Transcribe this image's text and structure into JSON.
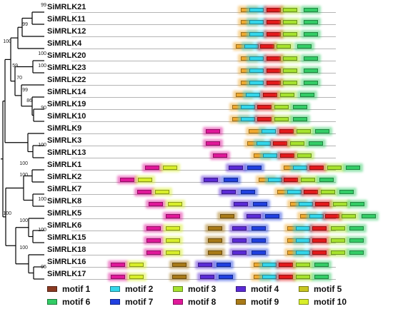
{
  "genes": [
    {
      "name": "SiMRLK21",
      "motifs": [
        [
          5,
          337
        ],
        [
          2,
          349
        ],
        [
          1,
          373
        ],
        [
          3,
          396
        ],
        [
          6,
          425
        ]
      ]
    },
    {
      "name": "SiMRLK11",
      "motifs": [
        [
          5,
          337
        ],
        [
          2,
          349
        ],
        [
          1,
          373
        ],
        [
          3,
          396
        ],
        [
          6,
          425
        ]
      ]
    },
    {
      "name": "SiMRLK12",
      "motifs": [
        [
          5,
          337
        ],
        [
          2,
          349
        ],
        [
          1,
          373
        ],
        [
          3,
          396
        ],
        [
          6,
          425
        ]
      ]
    },
    {
      "name": "SiMRLK4",
      "motifs": [
        [
          5,
          330
        ],
        [
          2,
          342
        ],
        [
          1,
          364
        ],
        [
          3,
          387
        ],
        [
          6,
          416
        ]
      ]
    },
    {
      "name": "SiMRLK20",
      "motifs": [
        [
          5,
          337
        ],
        [
          2,
          349
        ],
        [
          1,
          373
        ],
        [
          3,
          396
        ],
        [
          6,
          425
        ]
      ]
    },
    {
      "name": "SiMRLK23",
      "motifs": [
        [
          5,
          337
        ],
        [
          2,
          349
        ],
        [
          1,
          373
        ],
        [
          3,
          396
        ],
        [
          6,
          425
        ]
      ]
    },
    {
      "name": "SiMRLK22",
      "motifs": [
        [
          5,
          337
        ],
        [
          2,
          349
        ],
        [
          1,
          373
        ],
        [
          3,
          396
        ],
        [
          6,
          425
        ]
      ]
    },
    {
      "name": "SiMRLK14",
      "motifs": [
        [
          5,
          330
        ],
        [
          2,
          344
        ],
        [
          1,
          368
        ],
        [
          3,
          392
        ],
        [
          6,
          420
        ]
      ]
    },
    {
      "name": "SiMRLK19",
      "motifs": [
        [
          5,
          325
        ],
        [
          2,
          337
        ],
        [
          1,
          360
        ],
        [
          3,
          384
        ],
        [
          6,
          410
        ]
      ]
    },
    {
      "name": "SiMRLK10",
      "motifs": [
        [
          5,
          325
        ],
        [
          2,
          337
        ],
        [
          1,
          360
        ],
        [
          3,
          384
        ],
        [
          6,
          410
        ]
      ]
    },
    {
      "name": "SiMRLK9",
      "motifs": [
        [
          8,
          288
        ],
        [
          5,
          348
        ],
        [
          2,
          366
        ],
        [
          1,
          391
        ],
        [
          3,
          415
        ],
        [
          6,
          441
        ]
      ]
    },
    {
      "name": "SiMRLK3",
      "motifs": [
        [
          8,
          288
        ],
        [
          5,
          346
        ],
        [
          2,
          359
        ],
        [
          1,
          382
        ],
        [
          3,
          406
        ],
        [
          6,
          432
        ]
      ]
    },
    {
      "name": "SiMRLK13",
      "motifs": [
        [
          8,
          298
        ],
        [
          5,
          355
        ],
        [
          2,
          368
        ],
        [
          1,
          392
        ],
        [
          3,
          416
        ]
      ]
    },
    {
      "name": "SiMRLK1",
      "motifs": [
        [
          8,
          203
        ],
        [
          10,
          228
        ],
        [
          4,
          320
        ],
        [
          7,
          346
        ],
        [
          5,
          397
        ],
        [
          2,
          410
        ],
        [
          1,
          433
        ],
        [
          3,
          458
        ],
        [
          6,
          484
        ]
      ]
    },
    {
      "name": "SiMRLK2",
      "motifs": [
        [
          8,
          168
        ],
        [
          10,
          193
        ],
        [
          4,
          285
        ],
        [
          7,
          313
        ],
        [
          5,
          362
        ],
        [
          2,
          375
        ],
        [
          1,
          397
        ],
        [
          3,
          421
        ],
        [
          6,
          447
        ]
      ]
    },
    {
      "name": "SiMRLK7",
      "motifs": [
        [
          8,
          192
        ],
        [
          10,
          217
        ],
        [
          4,
          310
        ],
        [
          7,
          337
        ],
        [
          5,
          388
        ],
        [
          2,
          402
        ],
        [
          1,
          425
        ],
        [
          3,
          449
        ],
        [
          6,
          475
        ]
      ]
    },
    {
      "name": "SiMRLK8",
      "motifs": [
        [
          8,
          208
        ],
        [
          10,
          235
        ],
        [
          4,
          327
        ],
        [
          7,
          354
        ],
        [
          5,
          406
        ],
        [
          2,
          418
        ],
        [
          1,
          441
        ],
        [
          3,
          466
        ],
        [
          6,
          490
        ]
      ]
    },
    {
      "name": "SiMRLK5",
      "motifs": [
        [
          8,
          232
        ],
        [
          9,
          308
        ],
        [
          4,
          345
        ],
        [
          7,
          371
        ],
        [
          5,
          420
        ],
        [
          2,
          433
        ],
        [
          1,
          455
        ],
        [
          3,
          478
        ],
        [
          6,
          506
        ]
      ]
    },
    {
      "name": "SiMRLK6",
      "motifs": [
        [
          8,
          205
        ],
        [
          10,
          232
        ],
        [
          9,
          291
        ],
        [
          4,
          325
        ],
        [
          7,
          352
        ],
        [
          5,
          402
        ],
        [
          2,
          414
        ],
        [
          1,
          437
        ],
        [
          3,
          463
        ],
        [
          6,
          489
        ]
      ]
    },
    {
      "name": "SiMRLK15",
      "motifs": [
        [
          8,
          205
        ],
        [
          10,
          232
        ],
        [
          9,
          291
        ],
        [
          4,
          325
        ],
        [
          7,
          352
        ],
        [
          5,
          402
        ],
        [
          2,
          414
        ],
        [
          1,
          437
        ],
        [
          3,
          463
        ],
        [
          6,
          489
        ]
      ]
    },
    {
      "name": "SiMRLK18",
      "motifs": [
        [
          8,
          205
        ],
        [
          10,
          232
        ],
        [
          9,
          291
        ],
        [
          4,
          325
        ],
        [
          7,
          352
        ],
        [
          5,
          402
        ],
        [
          2,
          414
        ],
        [
          1,
          437
        ],
        [
          3,
          463
        ],
        [
          6,
          489
        ]
      ]
    },
    {
      "name": "SiMRLK16",
      "motifs": [
        [
          8,
          155
        ],
        [
          10,
          181
        ],
        [
          9,
          241
        ],
        [
          4,
          277
        ],
        [
          7,
          303
        ],
        [
          5,
          355
        ],
        [
          2,
          367
        ],
        [
          1,
          390
        ],
        [
          3,
          414
        ],
        [
          6,
          440
        ]
      ]
    },
    {
      "name": "SiMRLK17",
      "motifs": [
        [
          8,
          155
        ],
        [
          10,
          181
        ],
        [
          9,
          241
        ],
        [
          4,
          280
        ],
        [
          7,
          306
        ],
        [
          5,
          355
        ],
        [
          2,
          367
        ],
        [
          1,
          390
        ],
        [
          3,
          414
        ],
        [
          6,
          440
        ]
      ]
    }
  ],
  "support_values": [
    {
      "value": "99",
      "x": 66,
      "y": 13
    },
    {
      "value": "99",
      "x": 40,
      "y": 40
    },
    {
      "value": "100",
      "x": 17,
      "y": 64
    },
    {
      "value": "100",
      "x": 66,
      "y": 81
    },
    {
      "value": "59",
      "x": 26,
      "y": 98
    },
    {
      "value": "100",
      "x": 66,
      "y": 98
    },
    {
      "value": "70",
      "x": 32,
      "y": 115
    },
    {
      "value": "99",
      "x": 40,
      "y": 132
    },
    {
      "value": "86",
      "x": 46,
      "y": 147
    },
    {
      "value": "90",
      "x": 66,
      "y": 157
    },
    {
      "value": "100",
      "x": 66,
      "y": 209
    },
    {
      "value": "100",
      "x": 40,
      "y": 235
    },
    {
      "value": "100",
      "x": 40,
      "y": 251
    },
    {
      "value": "100",
      "x": 66,
      "y": 285
    },
    {
      "value": "100",
      "x": 17,
      "y": 305
    },
    {
      "value": "100",
      "x": 40,
      "y": 315
    },
    {
      "value": "100",
      "x": 66,
      "y": 328
    },
    {
      "value": "100",
      "x": 40,
      "y": 353
    },
    {
      "value": "95",
      "x": 66,
      "y": 380
    }
  ],
  "legend": [
    {
      "id": 1,
      "label": "motif 1"
    },
    {
      "id": 2,
      "label": "motif 2"
    },
    {
      "id": 3,
      "label": "motif 3"
    },
    {
      "id": 4,
      "label": "motif 4"
    },
    {
      "id": 5,
      "label": "motif 5"
    },
    {
      "id": 6,
      "label": "motif 6"
    },
    {
      "id": 7,
      "label": "motif 7"
    },
    {
      "id": 8,
      "label": "motif 8"
    },
    {
      "id": 9,
      "label": "motif 9"
    },
    {
      "id": 10,
      "label": "motif 10"
    }
  ],
  "colors": {
    "1": "#e31a1c",
    "2": "#33d6ea",
    "3": "#a6e22e",
    "4": "#5b2ad6",
    "5": "#f0a92e",
    "6": "#33cc66",
    "7": "#2040e0",
    "8": "#e0189a",
    "9": "#a87a18",
    "10": "#d8ee2a",
    "legend_1": "#8b3a22",
    "legend_5": "#c8c61e",
    "tree_line": "#000000",
    "seq_line": "#b4b4b4"
  }
}
